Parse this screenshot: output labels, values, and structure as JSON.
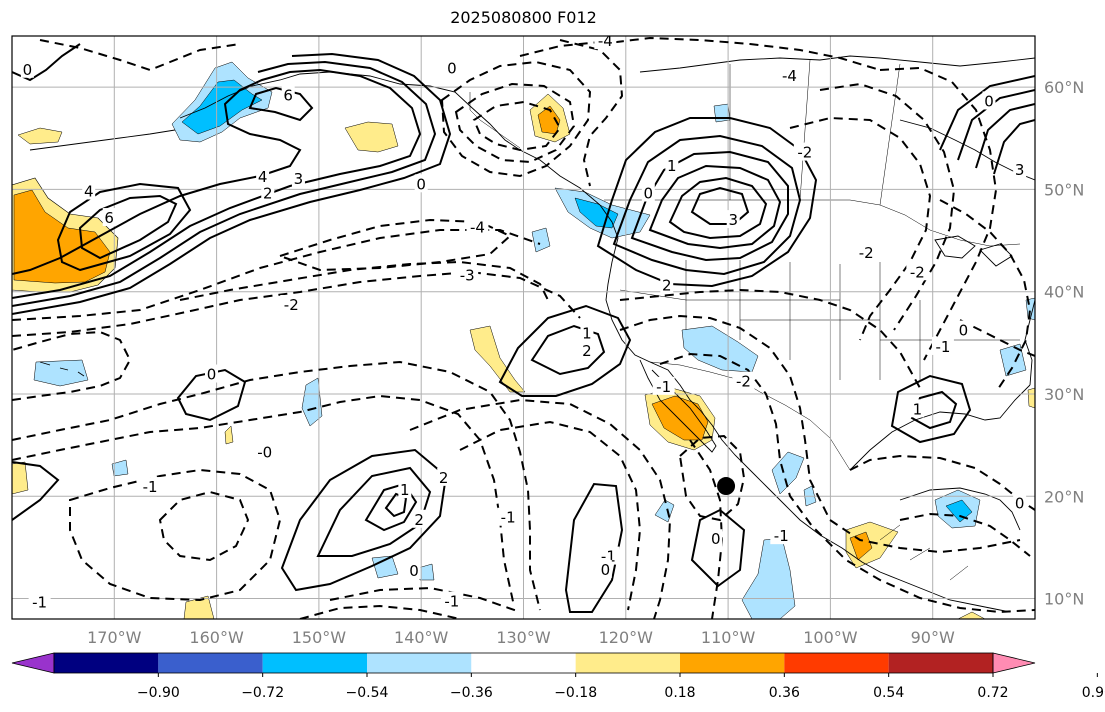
{
  "title": "2025080800 F012",
  "map": {
    "lon_range": [
      -180,
      -80
    ],
    "lat_range": [
      8,
      65
    ],
    "lon_ticks": [
      {
        "lon": -170,
        "label": "170°W"
      },
      {
        "lon": -160,
        "label": "160°W"
      },
      {
        "lon": -150,
        "label": "150°W"
      },
      {
        "lon": -140,
        "label": "140°W"
      },
      {
        "lon": -130,
        "label": "130°W"
      },
      {
        "lon": -120,
        "label": "120°W"
      },
      {
        "lon": -110,
        "label": "110°W"
      },
      {
        "lon": -100,
        "label": "100°W"
      },
      {
        "lon": -90,
        "label": "90°W"
      }
    ],
    "lat_ticks": [
      {
        "lat": 60,
        "label": "60°N"
      },
      {
        "lat": 50,
        "label": "50°N"
      },
      {
        "lat": 40,
        "label": "40°N"
      },
      {
        "lat": 30,
        "label": "30°N"
      },
      {
        "lat": 20,
        "label": "20°N"
      },
      {
        "lat": 10,
        "label": "10°N"
      }
    ],
    "marker": {
      "lon": -110.2,
      "lat": 21.0,
      "color": "#000000"
    },
    "contour_labels": [
      {
        "text": "4",
        "lon": -155.5,
        "lat": 51.2
      },
      {
        "text": "3",
        "lon": -152.0,
        "lat": 51.0
      },
      {
        "text": "2",
        "lon": -155.0,
        "lat": 49.6
      },
      {
        "text": "0",
        "lon": -140.0,
        "lat": 50.5
      },
      {
        "text": "6",
        "lon": -170.5,
        "lat": 47.2
      },
      {
        "text": "4",
        "lon": -172.5,
        "lat": 49.8
      },
      {
        "text": "6",
        "lon": -153.0,
        "lat": 59.2
      },
      {
        "text": "-3",
        "lon": -135.5,
        "lat": 41.6
      },
      {
        "text": "-2",
        "lon": -152.7,
        "lat": 38.7
      },
      {
        "text": "-4",
        "lon": -134.5,
        "lat": 46.3
      },
      {
        "text": "-4",
        "lon": -122.0,
        "lat": 64.5
      },
      {
        "text": "0",
        "lon": -160.5,
        "lat": 31.9
      },
      {
        "text": "-0",
        "lon": -155.3,
        "lat": 24.3
      },
      {
        "text": "-1",
        "lon": -166.5,
        "lat": 20.9
      },
      {
        "text": "1",
        "lon": -141.6,
        "lat": 20.6
      },
      {
        "text": "2",
        "lon": -137.8,
        "lat": 21.8
      },
      {
        "text": "2",
        "lon": -140.2,
        "lat": 17.7
      },
      {
        "text": "-1",
        "lon": -131.5,
        "lat": 17.9
      },
      {
        "text": "0",
        "lon": -140.7,
        "lat": 12.7
      },
      {
        "text": "-1",
        "lon": -137.0,
        "lat": 9.7
      },
      {
        "text": "1",
        "lon": -123.8,
        "lat": 35.9
      },
      {
        "text": "2",
        "lon": -123.8,
        "lat": 34.2
      },
      {
        "text": "1",
        "lon": -115.5,
        "lat": 52.3
      },
      {
        "text": "3",
        "lon": -109.5,
        "lat": 47.0
      },
      {
        "text": "2",
        "lon": -116.0,
        "lat": 40.6
      },
      {
        "text": "0",
        "lon": -117.8,
        "lat": 49.6
      },
      {
        "text": "-1",
        "lon": -116.3,
        "lat": 30.7
      },
      {
        "text": "-2",
        "lon": -108.5,
        "lat": 31.2
      },
      {
        "text": "-1",
        "lon": -121.7,
        "lat": 14.1
      },
      {
        "text": "0",
        "lon": -111.2,
        "lat": 15.8
      },
      {
        "text": "0",
        "lon": -122.0,
        "lat": 12.8
      },
      {
        "text": "-1",
        "lon": -104.8,
        "lat": 16.1
      },
      {
        "text": "-4",
        "lon": -104.0,
        "lat": 61.1
      },
      {
        "text": "-2",
        "lon": -102.5,
        "lat": 53.6
      },
      {
        "text": "-2",
        "lon": -96.5,
        "lat": 43.8
      },
      {
        "text": "-2",
        "lon": -91.5,
        "lat": 41.9
      },
      {
        "text": "0",
        "lon": -87.0,
        "lat": 36.2
      },
      {
        "text": "-1",
        "lon": -89.0,
        "lat": 34.6
      },
      {
        "text": "0",
        "lon": -84.5,
        "lat": 58.6
      },
      {
        "text": "3",
        "lon": -81.5,
        "lat": 51.9
      },
      {
        "text": "0",
        "lon": -178.5,
        "lat": 61.7
      },
      {
        "text": "-1",
        "lon": -177.3,
        "lat": 9.6
      },
      {
        "text": "0",
        "lon": -137.0,
        "lat": 61.8
      },
      {
        "text": "1",
        "lon": -91.5,
        "lat": 28.5
      },
      {
        "text": "0",
        "lon": -81.5,
        "lat": 19.3
      }
    ]
  },
  "colorbar": {
    "colors": [
      "#9933cc",
      "#000080",
      "#3a5fcd",
      "#00bfff",
      "#aee3ff",
      "#ffffff",
      "#ffec8b",
      "#ffa500",
      "#ff3b00",
      "#b22222",
      "#ff8cb3"
    ],
    "labels": [
      "−0.90",
      "−0.72",
      "−0.54",
      "−0.36",
      "−0.18",
      "0.18",
      "0.36",
      "0.54",
      "0.72",
      "0.90"
    ]
  }
}
